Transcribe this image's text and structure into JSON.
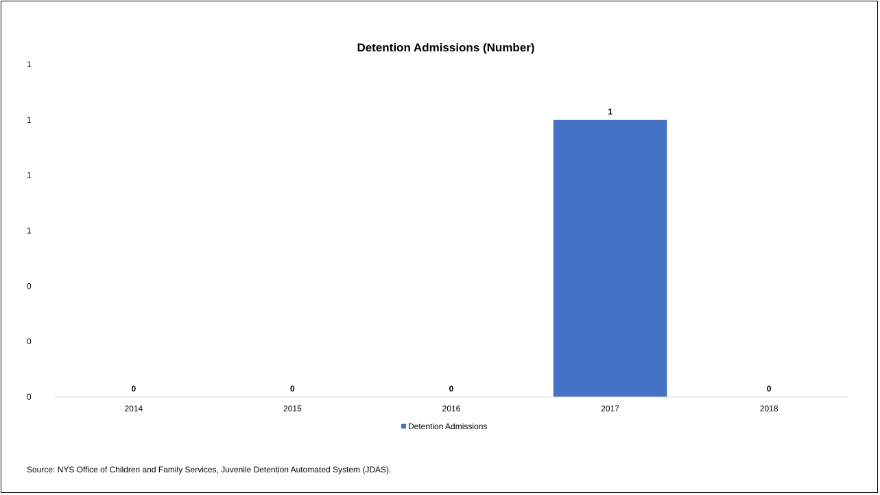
{
  "chart_data": {
    "type": "bar",
    "title": "Detention Admissions (Number)",
    "xlabel": "",
    "ylabel": "",
    "categories": [
      "2014",
      "2015",
      "2016",
      "2017",
      "2018"
    ],
    "series": [
      {
        "name": "Detention Admissions",
        "values": [
          0,
          0,
          0,
          1,
          0
        ],
        "data_labels": [
          "0",
          "0",
          "0",
          "1",
          "0"
        ],
        "color": "#4472C4"
      }
    ],
    "ylim": [
      0,
      1.2
    ],
    "y_ticks": [
      0,
      0.2,
      0.4,
      0.6,
      0.8,
      1.0,
      1.2
    ],
    "y_tick_labels": [
      "0",
      "0",
      "0",
      "1",
      "1",
      "1",
      "1"
    ],
    "grid": false,
    "legend_position": "bottom"
  },
  "source_note": "Source: NYS Office of Children and Family Services, Juvenile Detention Automated System (JDAS)."
}
